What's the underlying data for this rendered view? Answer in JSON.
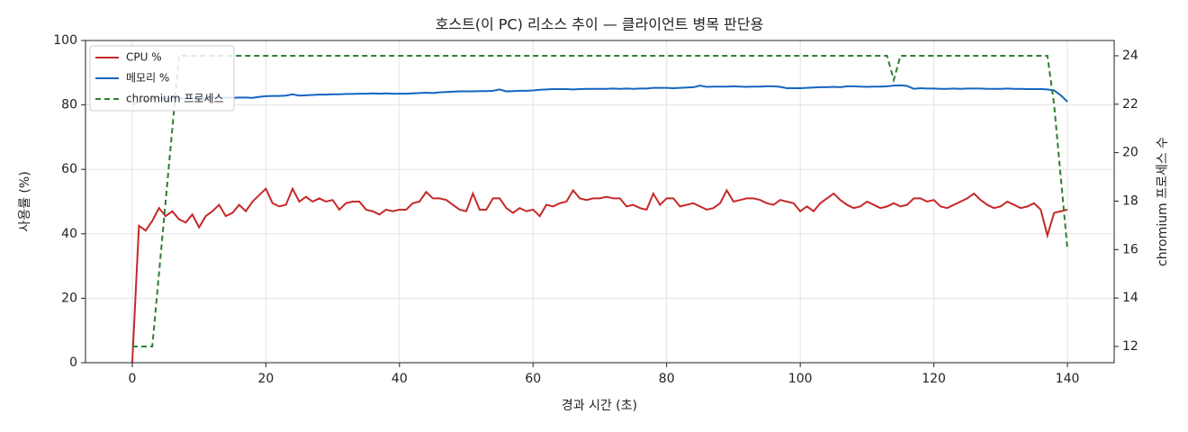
{
  "chart_data": {
    "type": "line",
    "title": "호스트(이 PC) 리소스 추이 — 클라이언트 병목 판단용",
    "x_label": "경과 시간 (초)",
    "y_label": "사용률 (%)",
    "y2_label": "chromium 프로세스 수",
    "x": [
      0,
      1,
      2,
      3,
      4,
      5,
      6,
      7,
      8,
      9,
      10,
      11,
      12,
      13,
      14,
      15,
      16,
      17,
      18,
      19,
      20,
      21,
      22,
      23,
      24,
      25,
      26,
      27,
      28,
      29,
      30,
      31,
      32,
      33,
      34,
      35,
      36,
      37,
      38,
      39,
      40,
      41,
      42,
      43,
      44,
      45,
      46,
      47,
      48,
      49,
      50,
      51,
      52,
      53,
      54,
      55,
      56,
      57,
      58,
      59,
      60,
      61,
      62,
      63,
      64,
      65,
      66,
      67,
      68,
      69,
      70,
      71,
      72,
      73,
      74,
      75,
      76,
      77,
      78,
      79,
      80,
      81,
      82,
      83,
      84,
      85,
      86,
      87,
      88,
      89,
      90,
      91,
      92,
      93,
      94,
      95,
      96,
      97,
      98,
      99,
      100,
      101,
      102,
      103,
      104,
      105,
      106,
      107,
      108,
      109,
      110,
      111,
      112,
      113,
      114,
      115,
      116,
      117,
      118,
      119,
      120,
      121,
      122,
      123,
      124,
      125,
      126,
      127,
      128,
      129,
      130,
      131,
      132,
      133,
      134,
      135,
      136,
      137,
      138,
      139,
      140
    ],
    "series": [
      {
        "name": "CPU %",
        "color": "#c62828",
        "values": [
          0,
          42.5,
          41,
          44,
          48,
          45.5,
          47,
          44.5,
          43.5,
          46,
          42,
          45.5,
          47,
          49,
          45.5,
          46.5,
          49,
          47,
          50,
          52,
          54,
          49.5,
          48.5,
          49,
          54,
          50,
          51.5,
          50,
          51,
          50,
          50.5,
          47.5,
          49.5,
          50,
          50,
          47.5,
          47,
          46,
          47.5,
          47,
          47.5,
          47.5,
          49.5,
          50,
          53,
          51,
          51,
          50.5,
          49,
          47.5,
          47,
          52.5,
          47.5,
          47.5,
          51,
          51,
          48,
          46.5,
          48,
          47,
          47.5,
          45.5,
          49,
          48.5,
          49.5,
          50,
          53.5,
          51,
          50.5,
          51,
          51,
          51.5,
          51,
          51,
          48.5,
          49,
          48,
          47.5,
          52.5,
          49,
          51,
          51,
          48.5,
          49,
          49.5,
          48.5,
          47.5,
          48,
          49.5,
          53.5,
          50,
          50.5,
          51,
          51,
          50.5,
          49.5,
          49,
          50.5,
          50,
          49.5,
          47,
          48.5,
          47,
          49.5,
          51,
          52.5,
          50.5,
          49,
          48,
          48.5,
          50,
          49,
          48,
          48.5,
          49.5,
          48.5,
          49,
          51,
          51,
          50,
          50.5,
          48.5,
          48,
          49,
          50,
          51,
          52.5,
          50.5,
          49,
          48,
          48.5,
          50,
          49,
          48,
          48.5,
          49.5,
          47.5,
          39.5,
          46.5,
          47,
          47.5
        ]
      },
      {
        "name": "메모리 %",
        "color": "#1565c0",
        "values": [
          80,
          81,
          81.5,
          82,
          82,
          82,
          82,
          82,
          82.1,
          82.1,
          82.2,
          82.2,
          82.3,
          82.3,
          82.3,
          82.2,
          82.3,
          82.3,
          82.2,
          82.5,
          82.7,
          82.8,
          82.8,
          82.9,
          83.3,
          82.9,
          83,
          83.1,
          83.2,
          83.2,
          83.3,
          83.3,
          83.4,
          83.4,
          83.5,
          83.5,
          83.6,
          83.5,
          83.6,
          83.5,
          83.5,
          83.5,
          83.6,
          83.7,
          83.8,
          83.7,
          83.9,
          84,
          84.1,
          84.2,
          84.2,
          84.2,
          84.3,
          84.3,
          84.4,
          84.8,
          84.2,
          84.3,
          84.4,
          84.4,
          84.5,
          84.7,
          84.8,
          84.9,
          84.9,
          84.9,
          84.8,
          84.9,
          85,
          85,
          85,
          85,
          85.1,
          85,
          85.1,
          85,
          85.1,
          85.1,
          85.3,
          85.3,
          85.3,
          85.2,
          85.3,
          85.4,
          85.5,
          86,
          85.6,
          85.7,
          85.7,
          85.7,
          85.8,
          85.7,
          85.6,
          85.7,
          85.7,
          85.8,
          85.8,
          85.6,
          85.2,
          85.2,
          85.2,
          85.3,
          85.4,
          85.5,
          85.5,
          85.6,
          85.5,
          85.8,
          85.8,
          85.7,
          85.6,
          85.7,
          85.7,
          85.8,
          86,
          86.1,
          85.9,
          85,
          85.2,
          85.1,
          85.1,
          85,
          85,
          85.1,
          85,
          85.1,
          85.1,
          85.1,
          85,
          85,
          85,
          85.1,
          85,
          85,
          84.9,
          84.9,
          84.9,
          84.8,
          84.5,
          83,
          81
        ]
      },
      {
        "name": "chromium 프로세스",
        "color": "#2e7d32",
        "dashed": true,
        "axis": "y2",
        "values": [
          12,
          12,
          12,
          12,
          15,
          18,
          21,
          24,
          24,
          24,
          24,
          24,
          24,
          24,
          24,
          24,
          24,
          24,
          24,
          24,
          24,
          24,
          24,
          24,
          24,
          24,
          24,
          24,
          24,
          24,
          24,
          24,
          24,
          24,
          24,
          24,
          24,
          24,
          24,
          24,
          24,
          24,
          24,
          24,
          24,
          24,
          24,
          24,
          24,
          24,
          24,
          24,
          24,
          24,
          24,
          24,
          24,
          24,
          24,
          24,
          24,
          24,
          24,
          24,
          24,
          24,
          24,
          24,
          24,
          24,
          24,
          24,
          24,
          24,
          24,
          24,
          24,
          24,
          24,
          24,
          24,
          24,
          24,
          24,
          24,
          24,
          24,
          24,
          24,
          24,
          24,
          24,
          24,
          24,
          24,
          24,
          24,
          24,
          24,
          24,
          24,
          24,
          24,
          24,
          24,
          24,
          24,
          24,
          24,
          24,
          24,
          24,
          24,
          24,
          23,
          24,
          24,
          24,
          24,
          24,
          24,
          24,
          24,
          24,
          24,
          24,
          24,
          24,
          24,
          24,
          24,
          24,
          24,
          24,
          24,
          24,
          24,
          24,
          22,
          19,
          16
        ]
      }
    ],
    "xlim": [
      -7,
      147
    ],
    "xticks": [
      0,
      20,
      40,
      60,
      80,
      100,
      120,
      140
    ],
    "ylim": [
      0,
      100
    ],
    "yticks": [
      0,
      20,
      40,
      60,
      80,
      100
    ],
    "y2lim": [
      11.33,
      24.63
    ],
    "y2ticks": [
      12,
      14,
      16,
      18,
      20,
      22,
      24
    ],
    "grid": true,
    "legend": "upper-left"
  }
}
